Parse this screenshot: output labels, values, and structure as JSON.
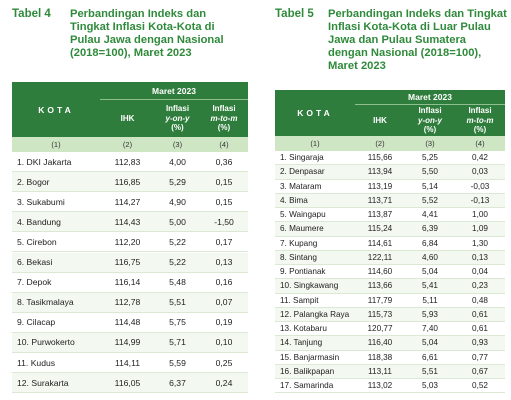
{
  "tables": [
    {
      "label": "Tabel 4",
      "title": "Perbandingan Indeks dan Tingkat Inflasi Kota-Kota di Pulau Jawa dengan Nasional (2018=100), Maret 2023",
      "header": {
        "kota": "KOTA",
        "period": "Maret 2023",
        "columns": [
          [
            "IHK"
          ],
          [
            "Inflasi",
            "y-on-y",
            "(%)"
          ],
          [
            "Inflasi",
            "m-to-m",
            "(%)"
          ]
        ]
      },
      "numbering": [
        "(1)",
        "(2)",
        "(3)",
        "(4)"
      ],
      "rows": [
        [
          "1. DKI Jakarta",
          "112,83",
          "4,00",
          "0,36"
        ],
        [
          "2. Bogor",
          "116,85",
          "5,29",
          "0,15"
        ],
        [
          "3. Sukabumi",
          "114,27",
          "4,90",
          "0,15"
        ],
        [
          "4. Bandung",
          "114,43",
          "5,00",
          "-1,50"
        ],
        [
          "5. Cirebon",
          "112,20",
          "5,22",
          "0,17"
        ],
        [
          "6. Bekasi",
          "116,75",
          "5,22",
          "0,13"
        ],
        [
          "7. Depok",
          "116,14",
          "5,48",
          "0,16"
        ],
        [
          "8. Tasikmalaya",
          "112,78",
          "5,51",
          "0,07"
        ],
        [
          "9. Cilacap",
          "114,48",
          "5,75",
          "0,19"
        ],
        [
          "10. Purwokerto",
          "114,99",
          "5,71",
          "0,10"
        ],
        [
          "11. Kudus",
          "114,11",
          "5,59",
          "0,25"
        ],
        [
          "12. Surakarta",
          "116,05",
          "6,37",
          "0,24"
        ]
      ]
    },
    {
      "label": "Tabel 5",
      "title": "Perbandingan Indeks dan Tingkat Inflasi Kota-Kota di Luar Pulau Jawa dan Pulau Sumatera dengan Nasional (2018=100), Maret 2023",
      "header": {
        "kota": "KOTA",
        "period": "Maret 2023",
        "columns": [
          [
            "IHK"
          ],
          [
            "Inflasi",
            "y-on-y",
            "(%)"
          ],
          [
            "Inflasi",
            "m-to-m",
            "(%)"
          ]
        ]
      },
      "numbering": [
        "(1)",
        "(2)",
        "(3)",
        "(4)"
      ],
      "rows": [
        [
          "1. Singaraja",
          "115,66",
          "5,25",
          "0,42"
        ],
        [
          "2. Denpasar",
          "113,94",
          "5,50",
          "0,03"
        ],
        [
          "3. Mataram",
          "113,19",
          "5,14",
          "-0,03"
        ],
        [
          "4. Bima",
          "113,71",
          "5,52",
          "-0,13"
        ],
        [
          "5. Waingapu",
          "113,87",
          "4,41",
          "1,00"
        ],
        [
          "6. Maumere",
          "115,24",
          "6,39",
          "1,09"
        ],
        [
          "7. Kupang",
          "114,61",
          "6,84",
          "1,30"
        ],
        [
          "8. Sintang",
          "122,11",
          "4,60",
          "0,13"
        ],
        [
          "9. Pontianak",
          "114,60",
          "5,04",
          "0,04"
        ],
        [
          "10. Singkawang",
          "113,66",
          "5,41",
          "0,23"
        ],
        [
          "11. Sampit",
          "117,79",
          "5,11",
          "0,48"
        ],
        [
          "12. Palangka Raya",
          "115,73",
          "5,93",
          "0,61"
        ],
        [
          "13. Kotabaru",
          "120,77",
          "7,40",
          "0,61"
        ],
        [
          "14. Tanjung",
          "116,40",
          "5,04",
          "0,93"
        ],
        [
          "15. Banjarmasin",
          "118,38",
          "6,61",
          "0,77"
        ],
        [
          "16. Balikpapan",
          "113,11",
          "5,51",
          "0,67"
        ],
        [
          "17. Samarinda",
          "113,02",
          "5,03",
          "0,52"
        ]
      ]
    }
  ]
}
